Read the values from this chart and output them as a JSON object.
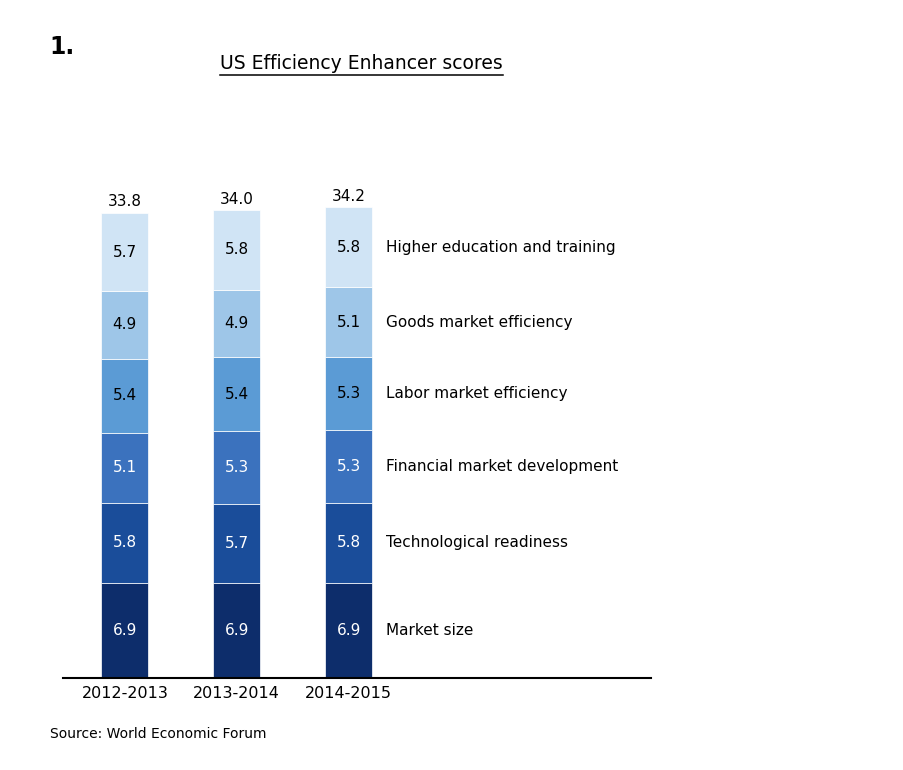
{
  "title": "US Efficiency Enhancer scores",
  "number_label": "1.",
  "source": "Source: World Economic Forum",
  "categories": [
    "2012-2013",
    "2013-2014",
    "2014-2015"
  ],
  "totals": [
    "33.8",
    "34.0",
    "34.2"
  ],
  "segments": [
    {
      "label": "Market size",
      "values": [
        6.9,
        6.9,
        6.9
      ],
      "color": "#0D2D6B",
      "text_color": "white"
    },
    {
      "label": "Technological readiness",
      "values": [
        5.8,
        5.7,
        5.8
      ],
      "color": "#1A4D9A",
      "text_color": "white"
    },
    {
      "label": "Financial market development",
      "values": [
        5.1,
        5.3,
        5.3
      ],
      "color": "#3B72BE",
      "text_color": "white"
    },
    {
      "label": "Labor market efficiency",
      "values": [
        5.4,
        5.4,
        5.3
      ],
      "color": "#5B9BD5",
      "text_color": "black"
    },
    {
      "label": "Goods market efficiency",
      "values": [
        4.9,
        4.9,
        5.1
      ],
      "color": "#9EC6E8",
      "text_color": "black"
    },
    {
      "label": "Higher education and training",
      "values": [
        5.7,
        5.8,
        5.8
      ],
      "color": "#D0E4F5",
      "text_color": "black"
    }
  ],
  "bar_width": 0.42,
  "figsize": [
    9.04,
    7.7
  ],
  "dpi": 100,
  "title_fontsize": 13.5,
  "tick_fontsize": 11.5,
  "value_label_fontsize": 11,
  "total_fontsize": 11,
  "legend_fontsize": 11,
  "ylim_max": 42,
  "background_color": "#FFFFFF"
}
